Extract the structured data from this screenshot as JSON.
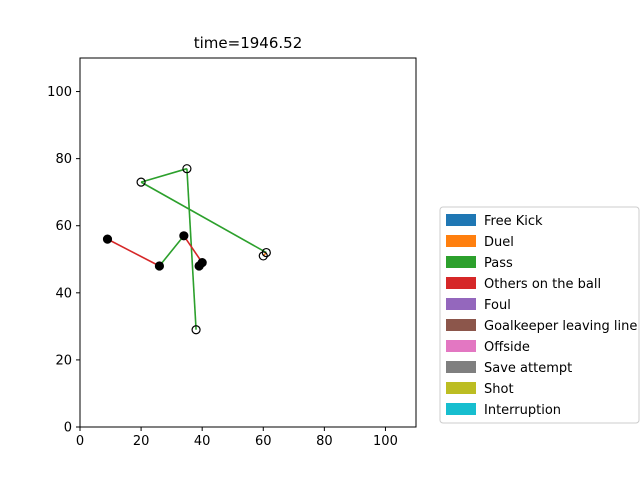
{
  "chart_data": {
    "type": "scatter",
    "title": "time=1946.52",
    "xlabel": "",
    "ylabel": "",
    "xlim": [
      0,
      110
    ],
    "ylim": [
      0,
      110
    ],
    "xticks": [
      0,
      20,
      40,
      60,
      80,
      100
    ],
    "yticks": [
      0,
      20,
      40,
      60,
      80,
      100
    ],
    "grid": false,
    "legend_position": "right-outside",
    "legend": [
      {
        "label": "Free Kick",
        "color": "#1f77b4"
      },
      {
        "label": "Duel",
        "color": "#ff7f0e"
      },
      {
        "label": "Pass",
        "color": "#2ca02c"
      },
      {
        "label": "Others on the ball",
        "color": "#d62728"
      },
      {
        "label": "Foul",
        "color": "#9467bd"
      },
      {
        "label": "Goalkeeper leaving line",
        "color": "#8c564b"
      },
      {
        "label": "Offside",
        "color": "#e377c2"
      },
      {
        "label": "Save attempt",
        "color": "#7f7f7f"
      },
      {
        "label": "Shot",
        "color": "#bcbd22"
      },
      {
        "label": "Interruption",
        "color": "#17becf"
      }
    ],
    "segments": [
      {
        "event": "Pass",
        "color": "#2ca02c",
        "from": [
          61,
          52
        ],
        "to": [
          20,
          73
        ]
      },
      {
        "event": "Pass",
        "color": "#2ca02c",
        "from": [
          20,
          73
        ],
        "to": [
          35,
          77
        ]
      },
      {
        "event": "Pass",
        "color": "#2ca02c",
        "from": [
          35,
          77
        ],
        "to": [
          38,
          29
        ]
      },
      {
        "event": "Others on the ball",
        "color": "#d62728",
        "from": [
          9,
          56
        ],
        "to": [
          26,
          48
        ]
      },
      {
        "event": "Pass",
        "color": "#2ca02c",
        "from": [
          26,
          48
        ],
        "to": [
          34,
          57
        ]
      },
      {
        "event": "Others on the ball",
        "color": "#d62728",
        "from": [
          34,
          57
        ],
        "to": [
          40,
          49
        ]
      },
      {
        "event": "Duel",
        "color": "#ff7f0e",
        "from": [
          39,
          48
        ],
        "to": [
          40,
          49
        ]
      },
      {
        "event": "Duel",
        "color": "#ff7f0e",
        "from": [
          60,
          51
        ],
        "to": [
          61,
          52
        ]
      }
    ],
    "points": [
      {
        "x": 61,
        "y": 52,
        "filled": false
      },
      {
        "x": 60,
        "y": 51,
        "filled": false
      },
      {
        "x": 20,
        "y": 73,
        "filled": false
      },
      {
        "x": 35,
        "y": 77,
        "filled": false
      },
      {
        "x": 38,
        "y": 29,
        "filled": false
      },
      {
        "x": 9,
        "y": 56,
        "filled": true
      },
      {
        "x": 26,
        "y": 48,
        "filled": true
      },
      {
        "x": 34,
        "y": 57,
        "filled": true
      },
      {
        "x": 39,
        "y": 48,
        "filled": true
      },
      {
        "x": 40,
        "y": 49,
        "filled": true
      }
    ]
  }
}
